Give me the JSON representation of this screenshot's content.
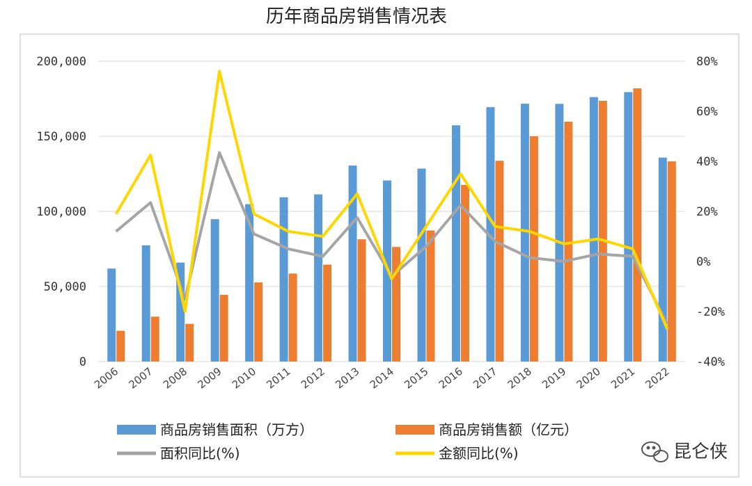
{
  "chart_data": {
    "type": "bar",
    "title": "历年商品房销售情况表",
    "categories": [
      "2006",
      "2007",
      "2008",
      "2009",
      "2010",
      "2011",
      "2012",
      "2013",
      "2014",
      "2015",
      "2016",
      "2017",
      "2018",
      "2019",
      "2020",
      "2021",
      "2022"
    ],
    "ylim": [
      0,
      200000
    ],
    "y_ticks": [
      "0",
      "50,000",
      "100,000",
      "150,000",
      "200,000"
    ],
    "y_tick_values": [
      0,
      50000,
      100000,
      150000,
      200000
    ],
    "y2lim": [
      -40,
      80
    ],
    "y2_ticks": [
      "-40%",
      "-20%",
      "0%",
      "20%",
      "40%",
      "60%",
      "80%"
    ],
    "y2_tick_values": [
      -40,
      -20,
      0,
      20,
      40,
      60,
      80
    ],
    "grid": true,
    "legend_position": "bottom",
    "series": [
      {
        "name": "商品房销售面积（万方）",
        "kind": "bar",
        "axis": "left",
        "color": "#5B9BD5",
        "values": [
          61900,
          77400,
          65900,
          94800,
          104800,
          109400,
          111300,
          130500,
          120600,
          128500,
          157300,
          169400,
          171700,
          171600,
          176100,
          179400,
          135800
        ]
      },
      {
        "name": "商品房销售额（亿元）",
        "kind": "bar",
        "axis": "left",
        "color": "#ED7D31",
        "values": [
          20500,
          29900,
          25100,
          44400,
          52700,
          58600,
          64500,
          81400,
          76300,
          87300,
          117600,
          133700,
          150000,
          159700,
          173600,
          181900,
          133300
        ]
      },
      {
        "name": "面积同比(%)",
        "kind": "line",
        "axis": "right",
        "color": "#A5A5A5",
        "values": [
          12,
          23.5,
          -15,
          43.5,
          11,
          5,
          2,
          17.5,
          -6,
          6,
          22.5,
          8,
          1.5,
          0,
          3,
          2,
          -25
        ]
      },
      {
        "name": "金额同比(%)",
        "kind": "line",
        "axis": "right",
        "color": "#FFD700",
        "values": [
          19,
          42.5,
          -20,
          76,
          19,
          12,
          10,
          27,
          -7,
          14,
          35,
          14,
          12,
          7,
          9,
          5,
          -27
        ]
      }
    ]
  },
  "watermark": {
    "icon": "wechat-bubble-icon",
    "text": "昆仑侠"
  }
}
